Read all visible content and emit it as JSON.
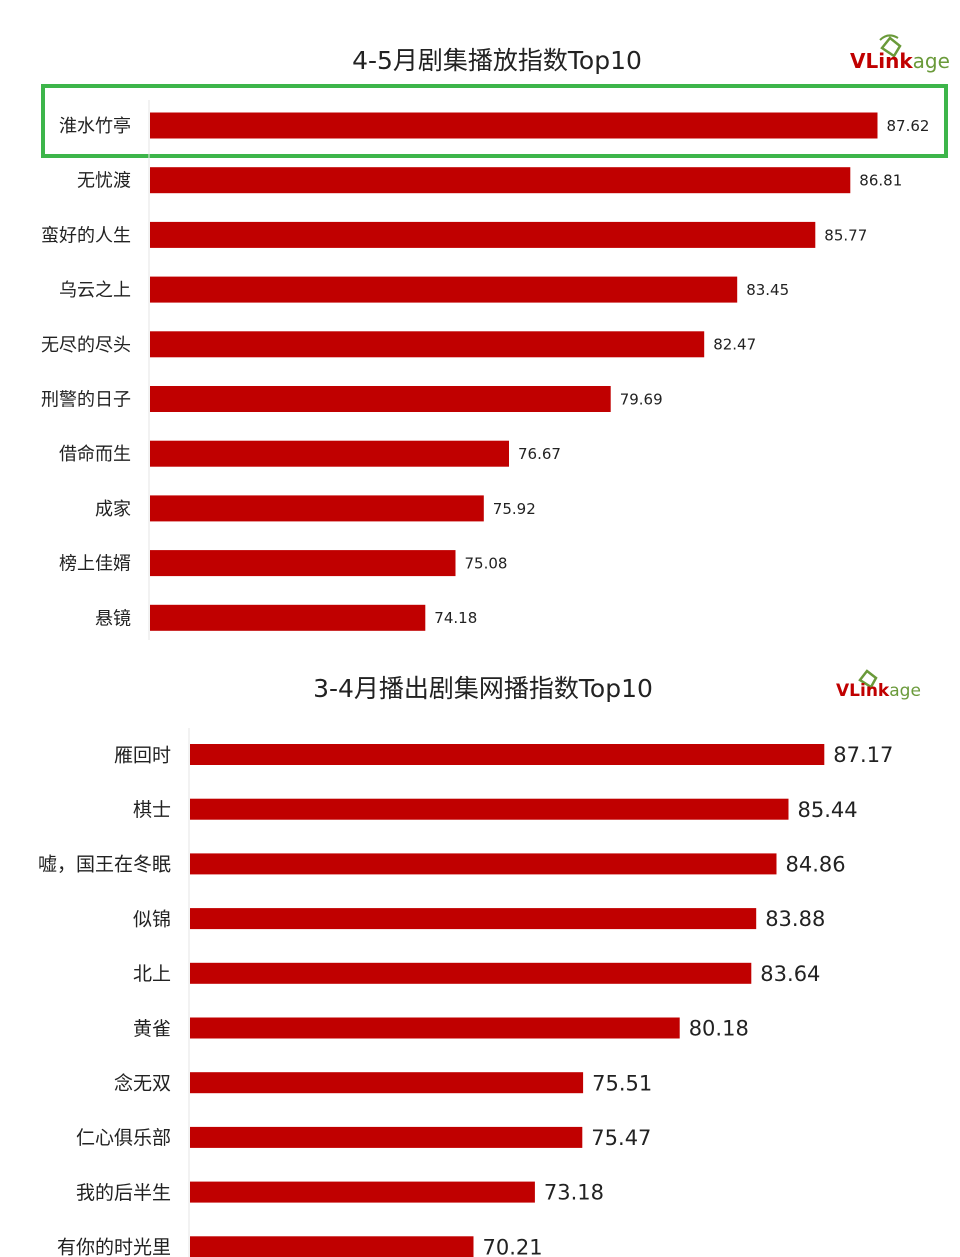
{
  "chart_data": [
    {
      "type": "bar",
      "orientation": "horizontal",
      "title": "4-5月剧集播放指数Top10",
      "logo": "VLinkage",
      "categories": [
        "淮水竹亭",
        "无忧渡",
        "蛮好的人生",
        "乌云之上",
        "无尽的尽头",
        "刑警的日子",
        "借命而生",
        "成家",
        "榜上佳婿",
        "悬镜"
      ],
      "values": [
        87.62,
        86.81,
        85.77,
        83.45,
        82.47,
        79.69,
        76.67,
        75.92,
        75.08,
        74.18
      ],
      "value_labels": [
        "87.62",
        "86.81",
        "85.77",
        "83.45",
        "82.47",
        "79.69",
        "76.67",
        "75.92",
        "75.08",
        "74.18"
      ],
      "highlighted_index": 0,
      "colors": {
        "bar": "#c00000",
        "highlight": "#3db54a",
        "logo_v": "#c00000",
        "logo_rest": "#6a9a3a"
      }
    },
    {
      "type": "bar",
      "orientation": "horizontal",
      "title": "3-4月播出剧集网播指数Top10",
      "logo": "VLinkage",
      "categories": [
        "雁回时",
        "棋士",
        "嘘，国王在冬眠",
        "似锦",
        "北上",
        "黄雀",
        "念无双",
        "仁心俱乐部",
        "我的后半生",
        "有你的时光里"
      ],
      "values": [
        87.17,
        85.44,
        84.86,
        83.88,
        83.64,
        80.18,
        75.51,
        75.47,
        73.18,
        70.21
      ],
      "value_labels": [
        "87.17",
        "85.44",
        "84.86",
        "83.88",
        "83.64",
        "80.18",
        "75.51",
        "75.47",
        "73.18",
        "70.21"
      ],
      "colors": {
        "bar": "#c00000",
        "logo_v": "#c00000",
        "logo_rest": "#6a9a3a"
      }
    }
  ]
}
